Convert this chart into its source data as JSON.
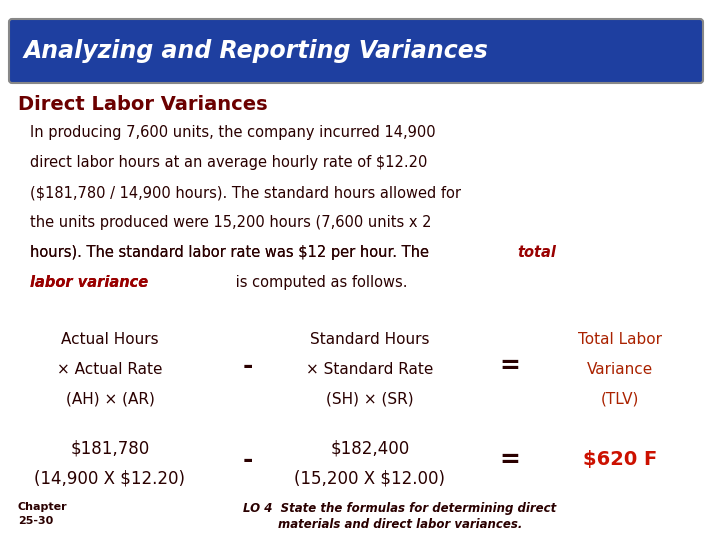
{
  "title": "Analyzing and Reporting Variances",
  "title_bg": "#1E3FA0",
  "title_fg": "#FFFFFF",
  "subtitle": "Direct Labor Variances",
  "subtitle_color": "#6B0000",
  "body_color": "#2a0000",
  "red_bold": "#990000",
  "col3_color": "#AA2200",
  "val3_color": "#CC1100",
  "para_lines": [
    "In producing 7,600 units, the company incurred 14,900",
    "direct labor hours at an average hourly rate of $12.20",
    "($181,780 / 14,900 hours). The standard hours allowed for",
    "the units produced were 15,200 hours (7,600 units x 2",
    "hours). The standard labor rate was $12 per hour. The "
  ],
  "para_line5_red": "total",
  "para_line6_red": "labor variance",
  "para_line6_rest": " is computed as follows.",
  "col1_lines": [
    "Actual Hours",
    "× Actual Rate",
    "(AH) × (AR)"
  ],
  "col2_lines": [
    "Standard Hours",
    "× Standard Rate",
    "(SH) × (SR)"
  ],
  "col3_lines": [
    "Total Labor",
    "Variance",
    "(TLV)"
  ],
  "val1_lines": [
    "$181,780",
    "(14,900 X $12.20)"
  ],
  "val2_lines": [
    "$182,400",
    "(15,200 X $12.00)"
  ],
  "val3": "$620 F",
  "chapter1": "Chapter",
  "chapter2": "25-30",
  "lo1": "LO 4  State the formulas for determining direct",
  "lo2": "materials and direct labor variances.",
  "bg_color": "#FFFFFF"
}
